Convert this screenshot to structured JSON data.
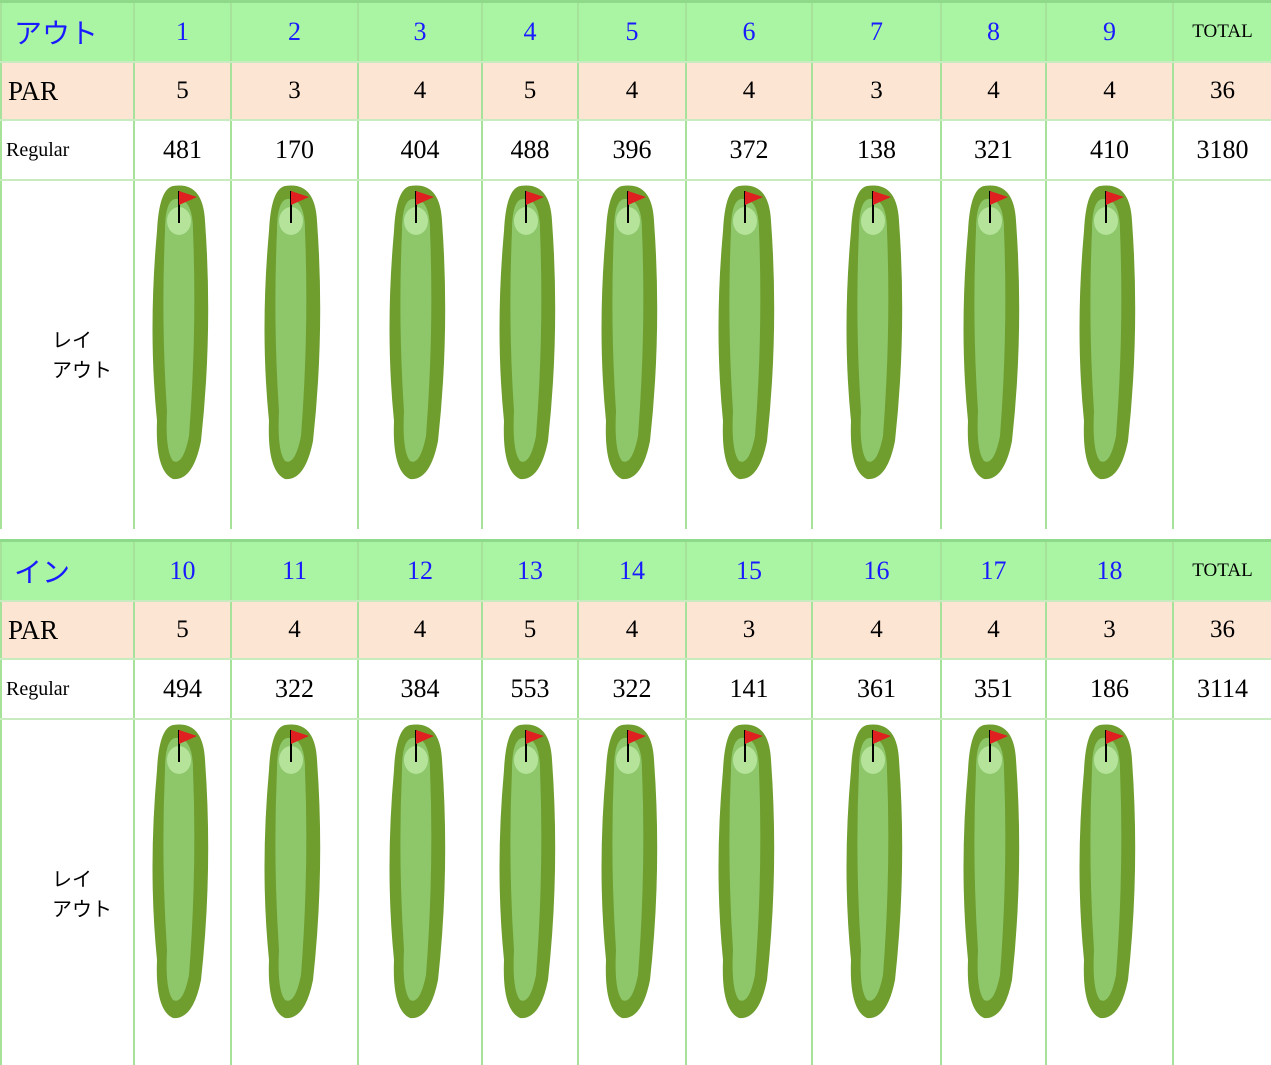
{
  "sections": [
    {
      "header": {
        "label": "アウト",
        "holes": [
          "1",
          "2",
          "3",
          "4",
          "5",
          "6",
          "7",
          "8",
          "9"
        ],
        "total": "TOTAL"
      },
      "par": {
        "label": "PAR",
        "values": [
          5,
          3,
          4,
          5,
          4,
          4,
          3,
          4,
          4
        ],
        "total": 36
      },
      "regular": {
        "label": "Regular",
        "values": [
          481,
          170,
          404,
          488,
          396,
          372,
          138,
          321,
          410
        ],
        "total": 3180
      },
      "layout": {
        "label": [
          "レイ",
          "アウト"
        ]
      }
    },
    {
      "header": {
        "label": "イン",
        "holes": [
          "10",
          "11",
          "12",
          "13",
          "14",
          "15",
          "16",
          "17",
          "18"
        ],
        "total": "TOTAL"
      },
      "par": {
        "label": "PAR",
        "values": [
          5,
          4,
          4,
          5,
          4,
          3,
          4,
          4,
          3
        ],
        "total": 36
      },
      "regular": {
        "label": "Regular",
        "values": [
          494,
          322,
          384,
          553,
          322,
          141,
          361,
          351,
          186
        ],
        "total": 3114
      },
      "layout": {
        "label": [
          "レイ",
          "アウト"
        ]
      }
    }
  ]
}
